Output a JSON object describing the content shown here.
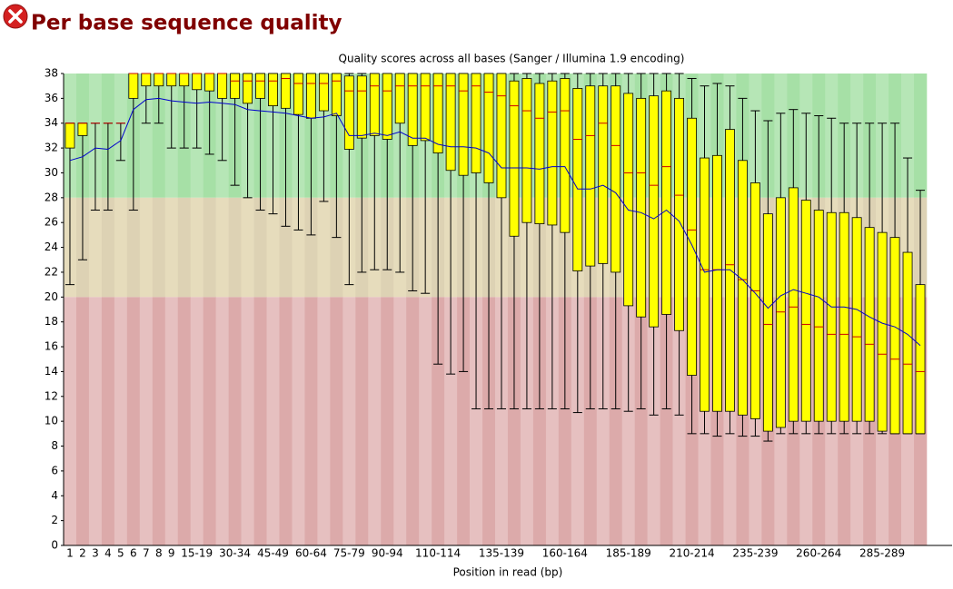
{
  "page_title": "Per base sequence quality",
  "chart_data": {
    "type": "boxplot",
    "title": "Quality scores across all bases (Sanger / Illumina 1.9 encoding)",
    "x_label": "Position in read (bp)",
    "categories": [
      "1",
      "2",
      "3",
      "4",
      "5",
      "6",
      "7",
      "8",
      "9",
      null,
      "15-19",
      null,
      null,
      "30-34",
      null,
      null,
      "45-49",
      null,
      null,
      "60-64",
      null,
      null,
      "75-79",
      null,
      null,
      "90-94",
      null,
      null,
      null,
      "110-114",
      null,
      null,
      null,
      null,
      "135-139",
      null,
      null,
      null,
      null,
      "160-164",
      null,
      null,
      null,
      null,
      "185-189",
      null,
      null,
      null,
      null,
      "210-214",
      null,
      null,
      null,
      null,
      "235-239",
      null,
      null,
      null,
      null,
      "260-264",
      null,
      null,
      null,
      null,
      "285-289",
      null,
      null,
      null
    ],
    "boxes": {
      "p10": [
        21,
        23,
        27,
        27,
        31,
        27,
        34,
        34,
        32,
        32,
        32,
        31.5,
        31,
        29,
        28,
        27,
        26.7,
        25.7,
        25.4,
        25,
        27.7,
        24.8,
        21,
        22,
        22.2,
        22.2,
        22,
        20.5,
        20.3,
        14.6,
        13.8,
        14,
        11,
        11,
        11,
        11,
        11,
        11,
        11,
        11,
        10.7,
        11,
        11,
        11,
        10.8,
        11,
        10.5,
        11,
        10.5,
        9,
        9,
        8.8,
        9,
        8.8,
        8.8,
        8.4,
        9,
        9,
        9,
        9,
        9,
        9,
        9,
        9,
        9,
        9,
        9,
        9
      ],
      "q1": [
        32,
        33,
        34,
        34,
        34,
        36,
        37,
        37,
        37,
        37,
        36.7,
        36.6,
        36,
        36,
        35.6,
        36,
        35.4,
        35.2,
        34.7,
        34.4,
        35,
        34.6,
        31.9,
        32.8,
        33,
        32.7,
        34,
        32.2,
        32.6,
        31.6,
        30.2,
        29.8,
        30,
        29.2,
        28,
        24.9,
        26,
        25.9,
        25.8,
        25.2,
        22.1,
        22.5,
        22.7,
        22,
        19.3,
        18.4,
        17.6,
        18.6,
        17.3,
        13.7,
        10.8,
        10.8,
        10.8,
        10.5,
        10.2,
        9.2,
        9.5,
        10,
        10,
        10,
        10,
        10,
        10,
        10,
        9.2,
        9,
        9,
        9
      ],
      "median": [
        34,
        34,
        34,
        34,
        34,
        38,
        38,
        38,
        38,
        38,
        38,
        38,
        38,
        37.4,
        37.4,
        37.4,
        37.4,
        37.6,
        37.2,
        37.2,
        37.2,
        37.4,
        36.6,
        36.6,
        37,
        36.6,
        37,
        37,
        37,
        37,
        37,
        36.6,
        37,
        36.5,
        36.2,
        35.4,
        35,
        34.4,
        34.9,
        35,
        32.7,
        33,
        34,
        32.2,
        30,
        30,
        29,
        30.5,
        28.2,
        25.4,
        22.2,
        22.2,
        22.6,
        21.4,
        20.5,
        17.8,
        18.8,
        19.2,
        17.8,
        17.6,
        17,
        17,
        16.8,
        16.2,
        15.4,
        15,
        14.6,
        14
      ],
      "q3": [
        34,
        34,
        34,
        34,
        34,
        38,
        38,
        38,
        38,
        38,
        38,
        38,
        38,
        38,
        38,
        38,
        38,
        38,
        38,
        38,
        38,
        38,
        37.8,
        37.8,
        38,
        38,
        38,
        38,
        38,
        38,
        38,
        38,
        38,
        38,
        38,
        37.4,
        37.6,
        37.2,
        37.4,
        37.6,
        36.8,
        37,
        37,
        37,
        36.4,
        36,
        36.2,
        36.6,
        36,
        34.4,
        31.2,
        31.4,
        33.5,
        31,
        29.2,
        26.7,
        28,
        28.8,
        27.8,
        27,
        26.8,
        26.8,
        26.4,
        25.6,
        25.2,
        24.8,
        23.6,
        21
      ],
      "p90": [
        34,
        34,
        34,
        34,
        34,
        38,
        38,
        38,
        38,
        38,
        38,
        38,
        38,
        38,
        38,
        38,
        38,
        38,
        38,
        38,
        38,
        38,
        38,
        38,
        38,
        38,
        38,
        38,
        38,
        38,
        38,
        38,
        38,
        38,
        38,
        38,
        38,
        38,
        38,
        38,
        38,
        38,
        38,
        38,
        38,
        38,
        38,
        38,
        38,
        37.6,
        37,
        37.2,
        37,
        36,
        35,
        34.2,
        34.8,
        35.1,
        34.8,
        34.6,
        34.4,
        34,
        34,
        34,
        34,
        34,
        31.2,
        28.6
      ]
    },
    "mean": [
      31,
      31.3,
      32,
      31.9,
      32.6,
      35.1,
      35.9,
      36,
      35.8,
      35.7,
      35.6,
      35.7,
      35.6,
      35.5,
      35.1,
      35,
      34.9,
      34.8,
      34.6,
      34.4,
      34.5,
      34.8,
      33,
      33,
      33.2,
      33,
      33.3,
      32.8,
      32.8,
      32.3,
      32.1,
      32.1,
      32,
      31.6,
      30.4,
      30.4,
      30.4,
      30.3,
      30.5,
      30.5,
      28.7,
      28.7,
      29,
      28.4,
      27,
      26.8,
      26.3,
      27,
      26.1,
      24.2,
      22,
      22.2,
      22.2,
      21.4,
      20.3,
      19.1,
      20.1,
      20.6,
      20.3,
      20,
      19.2,
      19.2,
      19,
      18.4,
      17.9,
      17.6,
      17,
      16.1
    ],
    "box_color": "#ffff00",
    "median_color": "#cc0000",
    "mean_color": "#0000cc",
    "zones": [
      {
        "from": 28,
        "to": 38,
        "colors": [
          "#b6e6b6",
          "#a6e0a6"
        ]
      },
      {
        "from": 20,
        "to": 28,
        "colors": [
          "#e6dcbc",
          "#ddd2b4"
        ]
      },
      {
        "from": 0,
        "to": 20,
        "colors": [
          "#e6c0c0",
          "#dcaaaa"
        ]
      }
    ],
    "ylim": [
      0,
      38
    ],
    "yticks": [
      0,
      2,
      4,
      6,
      8,
      10,
      12,
      14,
      16,
      18,
      20,
      22,
      24,
      26,
      28,
      30,
      32,
      34,
      36,
      38
    ]
  }
}
